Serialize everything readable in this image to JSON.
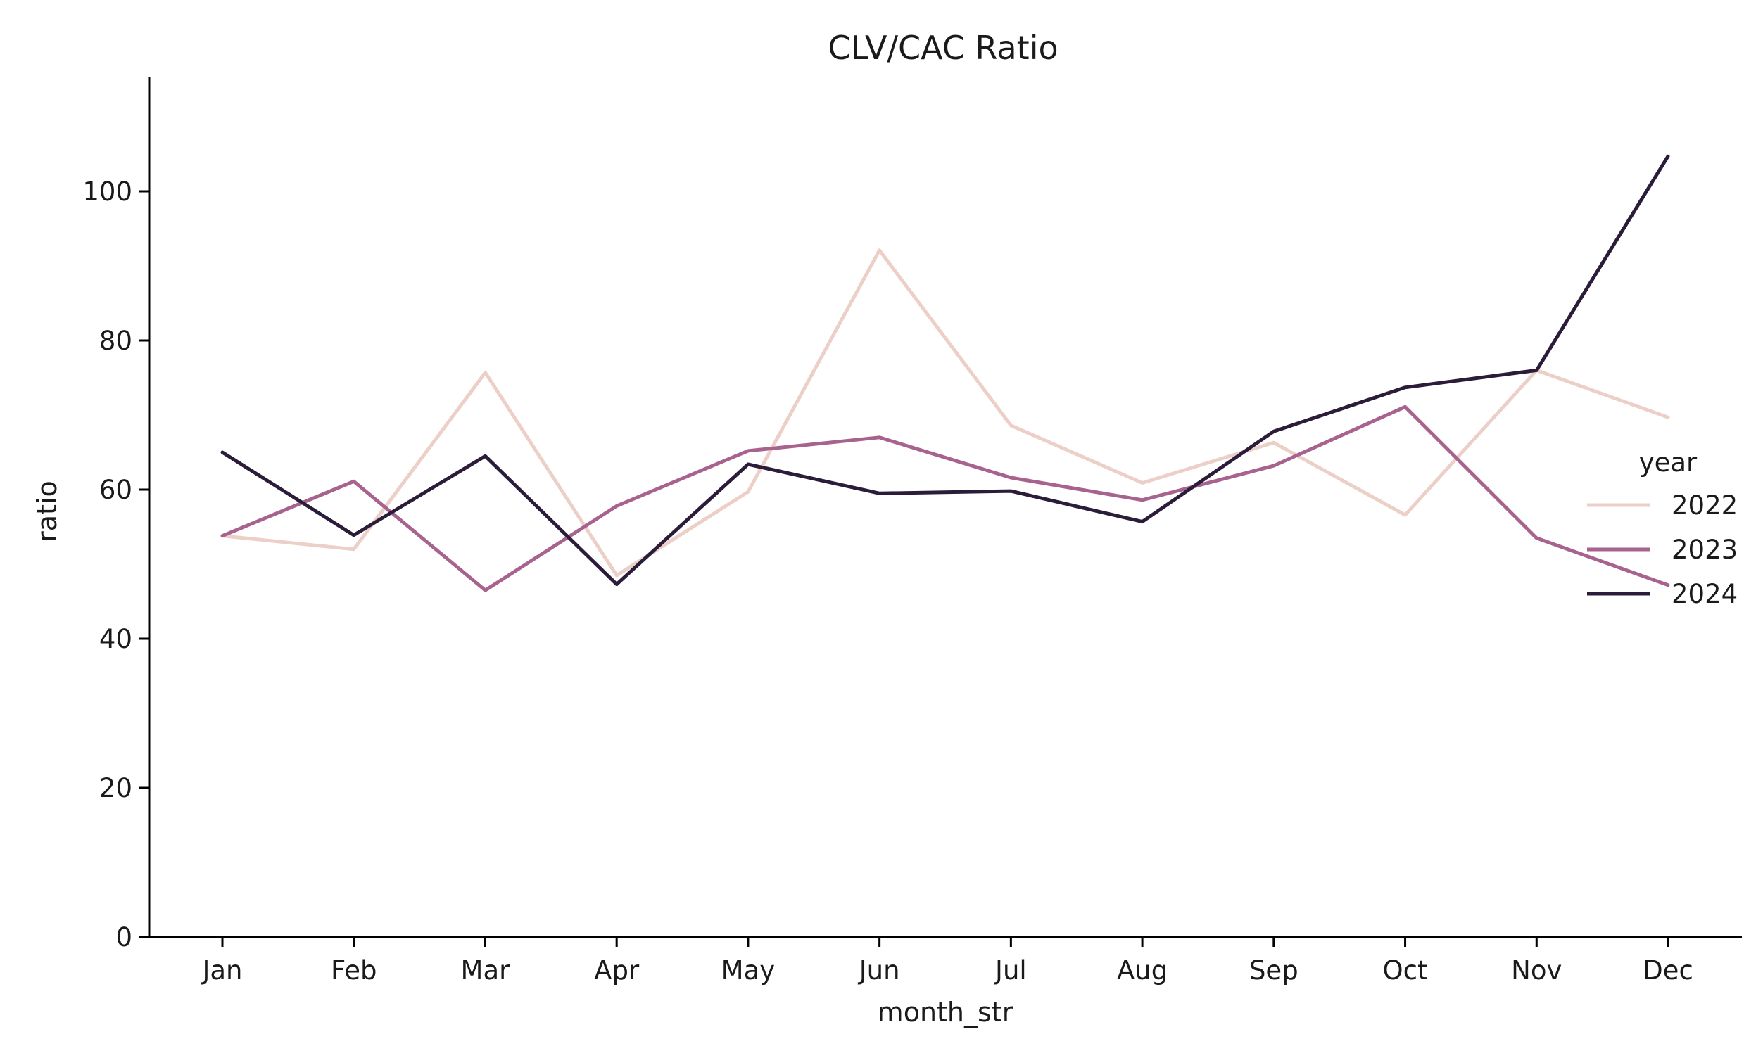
{
  "chart_data": {
    "type": "line",
    "title": "CLV/CAC Ratio",
    "xlabel": "month_str",
    "ylabel": "ratio",
    "categories": [
      "Jan",
      "Feb",
      "Mar",
      "Apr",
      "May",
      "Jun",
      "Jul",
      "Aug",
      "Sep",
      "Oct",
      "Nov",
      "Dec"
    ],
    "ylim": [
      0,
      115
    ],
    "yticks": [
      0,
      20,
      40,
      60,
      80,
      100
    ],
    "grid": false,
    "legend": {
      "title": "year",
      "placement": "center-right"
    },
    "series": [
      {
        "name": "2022",
        "color": "#ecd0c8",
        "values": [
          53.8,
          52.0,
          75.7,
          48.5,
          59.7,
          92.1,
          68.6,
          60.9,
          66.3,
          56.6,
          76.0,
          69.7
        ]
      },
      {
        "name": "2023",
        "color": "#a8628e",
        "values": [
          53.8,
          61.1,
          46.5,
          57.8,
          65.2,
          67.0,
          61.6,
          58.6,
          63.2,
          71.1,
          53.5,
          47.2
        ]
      },
      {
        "name": "2024",
        "color": "#2b1c3a",
        "values": [
          65.0,
          53.9,
          64.5,
          47.3,
          63.4,
          59.5,
          59.8,
          55.7,
          67.8,
          73.7,
          76.0,
          104.7
        ]
      }
    ]
  }
}
